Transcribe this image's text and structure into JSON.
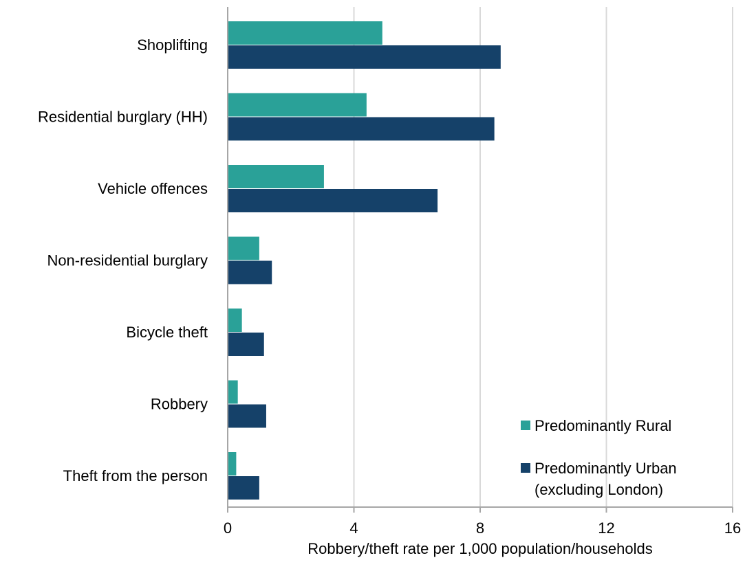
{
  "chart_data": {
    "type": "bar",
    "orientation": "horizontal",
    "categories": [
      "Shoplifting",
      "Residential burglary (HH)",
      "Vehicle offences",
      "Non-residential burglary",
      "Bicycle theft",
      "Robbery",
      "Theft from the person"
    ],
    "series": [
      {
        "name": "Predominantly Rural",
        "color": "#2aa198",
        "values": [
          4.9,
          4.4,
          3.05,
          1.0,
          0.45,
          0.32,
          0.27
        ]
      },
      {
        "name": "Predominantly Urban (excluding London)",
        "color": "#154169",
        "values": [
          8.65,
          8.45,
          6.65,
          1.4,
          1.15,
          1.22,
          1.0
        ]
      }
    ],
    "legend_lines": [
      [
        "Predominantly Rural"
      ],
      [
        "Predominantly Urban",
        "(excluding London)"
      ]
    ],
    "xlabel": "Robbery/theft rate per 1,000 population/households",
    "ylabel": "",
    "xlim": [
      0,
      16
    ],
    "xticks": [
      0,
      4,
      8,
      12,
      16
    ],
    "xtick_labels": [
      "0",
      "4",
      "8",
      "12",
      "16"
    ],
    "grid": true,
    "legend_position": "bottom-right"
  }
}
